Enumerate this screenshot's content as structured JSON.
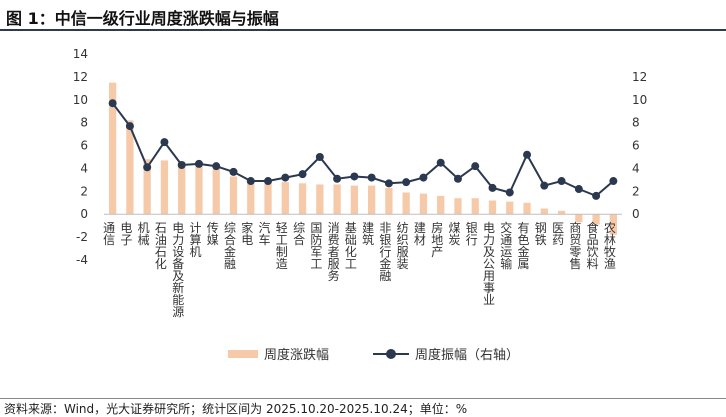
{
  "header": {
    "title": "图 1：中信一级行业周度涨跌幅与振幅"
  },
  "footer": {
    "source": "资料来源：Wind，光大证券研究所；统计区间为 2025.10.20-2025.10.24；单位：%"
  },
  "legend": {
    "bar_label": "周度涨跌幅",
    "line_label": "周度振幅（右轴）"
  },
  "colors": {
    "bar": "#f6c9a9",
    "line": "#2a3850"
  },
  "chart_data": {
    "type": "bar",
    "categories": [
      "通信",
      "电子",
      "机械",
      "石油石化",
      "电力设备及新能源",
      "计算机",
      "传媒",
      "综合金融",
      "家电",
      "汽车",
      "轻工制造",
      "综合",
      "国防军工",
      "消费者服务",
      "基础化工",
      "建筑",
      "非银行金融",
      "纺织服装",
      "建材",
      "房地产",
      "煤炭",
      "银行",
      "电力及公用事业",
      "交通运输",
      "有色金属",
      "钢铁",
      "医药",
      "商贸零售",
      "食品饮料",
      "农林牧渔"
    ],
    "series": [
      {
        "name": "周度涨跌幅",
        "type": "bar",
        "axis": "left",
        "values": [
          11.5,
          8.2,
          4.8,
          4.7,
          4.6,
          4.5,
          4.2,
          3.3,
          3.1,
          2.9,
          2.8,
          2.7,
          2.6,
          2.6,
          2.5,
          2.5,
          2.3,
          1.9,
          1.8,
          1.6,
          1.4,
          1.4,
          1.2,
          1.1,
          1.0,
          0.5,
          0.3,
          -0.7,
          -0.9,
          -1.8
        ]
      },
      {
        "name": "周度振幅（右轴）",
        "type": "line",
        "axis": "right",
        "values": [
          9.7,
          7.7,
          4.1,
          6.3,
          4.3,
          4.4,
          4.2,
          3.7,
          2.9,
          2.9,
          3.2,
          3.5,
          5.0,
          3.1,
          3.3,
          3.2,
          2.7,
          2.8,
          3.2,
          4.5,
          3.1,
          4.2,
          2.3,
          1.9,
          5.2,
          2.5,
          2.9,
          2.2,
          1.6,
          2.9
        ]
      }
    ],
    "left_axis": {
      "ylim": [
        -4,
        14
      ],
      "ticks": [
        -4,
        -2,
        0,
        2,
        4,
        6,
        8,
        10,
        12,
        14
      ]
    },
    "right_axis": {
      "ylim": [
        0,
        12
      ],
      "ticks": [
        0,
        2,
        4,
        6,
        8,
        10,
        12
      ]
    },
    "grid": false,
    "legend_position": "bottom"
  }
}
